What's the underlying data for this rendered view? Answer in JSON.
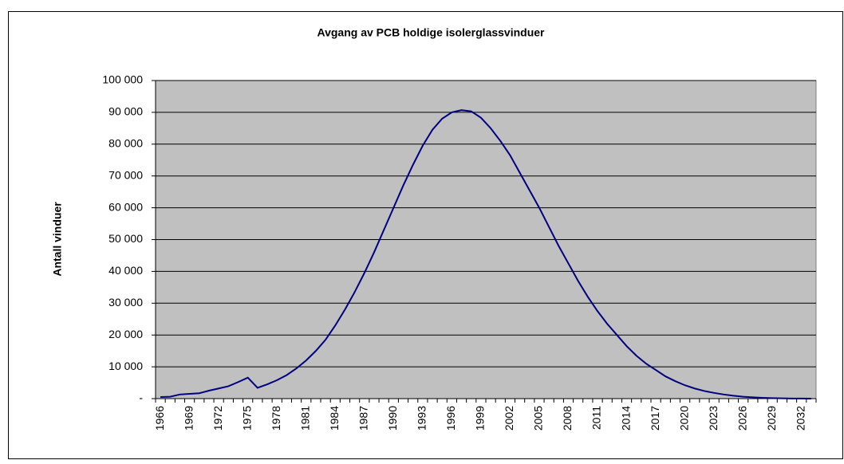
{
  "chart_data": {
    "type": "line",
    "title": "Avgang av PCB holdige isolerglassvinduer",
    "y_label": "Antall vinduer",
    "categories": [
      "1966",
      null,
      null,
      "1969",
      null,
      null,
      "1972",
      null,
      null,
      "1975",
      null,
      null,
      "1978",
      null,
      null,
      "1981",
      null,
      null,
      "1984",
      null,
      null,
      "1987",
      null,
      null,
      "1990",
      null,
      null,
      "1993",
      null,
      null,
      "1996",
      null,
      null,
      "1999",
      null,
      null,
      "2002",
      null,
      null,
      "2005",
      null,
      null,
      "2008",
      null,
      null,
      "2011",
      null,
      null,
      "2014",
      null,
      null,
      "2017",
      null,
      null,
      "2020",
      null,
      null,
      "2023",
      null,
      null,
      "2026",
      null,
      null,
      "2029",
      null,
      null,
      "2032",
      null
    ],
    "series": [
      {
        "name": "Avgang",
        "color": "#000080",
        "values": [
          500,
          600,
          1300,
          1500,
          1700,
          2500,
          3200,
          3900,
          5200,
          6600,
          3400,
          4500,
          5800,
          7400,
          9500,
          12000,
          15000,
          18500,
          23000,
          28000,
          33500,
          39500,
          46000,
          53000,
          60000,
          67000,
          73500,
          79500,
          84500,
          88000,
          90000,
          90700,
          90300,
          88300,
          85000,
          81000,
          76500,
          71000,
          65500,
          60000,
          54000,
          48000,
          42500,
          37000,
          32000,
          27500,
          23500,
          20000,
          16500,
          13500,
          11000,
          9000,
          7000,
          5500,
          4200,
          3200,
          2400,
          1800,
          1300,
          900,
          600,
          400,
          250,
          150,
          80,
          40,
          20,
          10
        ]
      }
    ],
    "ylim": [
      0,
      100000
    ],
    "yticks": [
      {
        "value": 0,
        "label": "-"
      },
      {
        "value": 10000,
        "label": "10 000"
      },
      {
        "value": 20000,
        "label": "20 000"
      },
      {
        "value": 30000,
        "label": "30 000"
      },
      {
        "value": 40000,
        "label": "40 000"
      },
      {
        "value": 50000,
        "label": "50 000"
      },
      {
        "value": 60000,
        "label": "60 000"
      },
      {
        "value": 70000,
        "label": "70 000"
      },
      {
        "value": 80000,
        "label": "80 000"
      },
      {
        "value": 90000,
        "label": "90 000"
      },
      {
        "value": 100000,
        "label": "100 000"
      }
    ],
    "grid": true
  }
}
